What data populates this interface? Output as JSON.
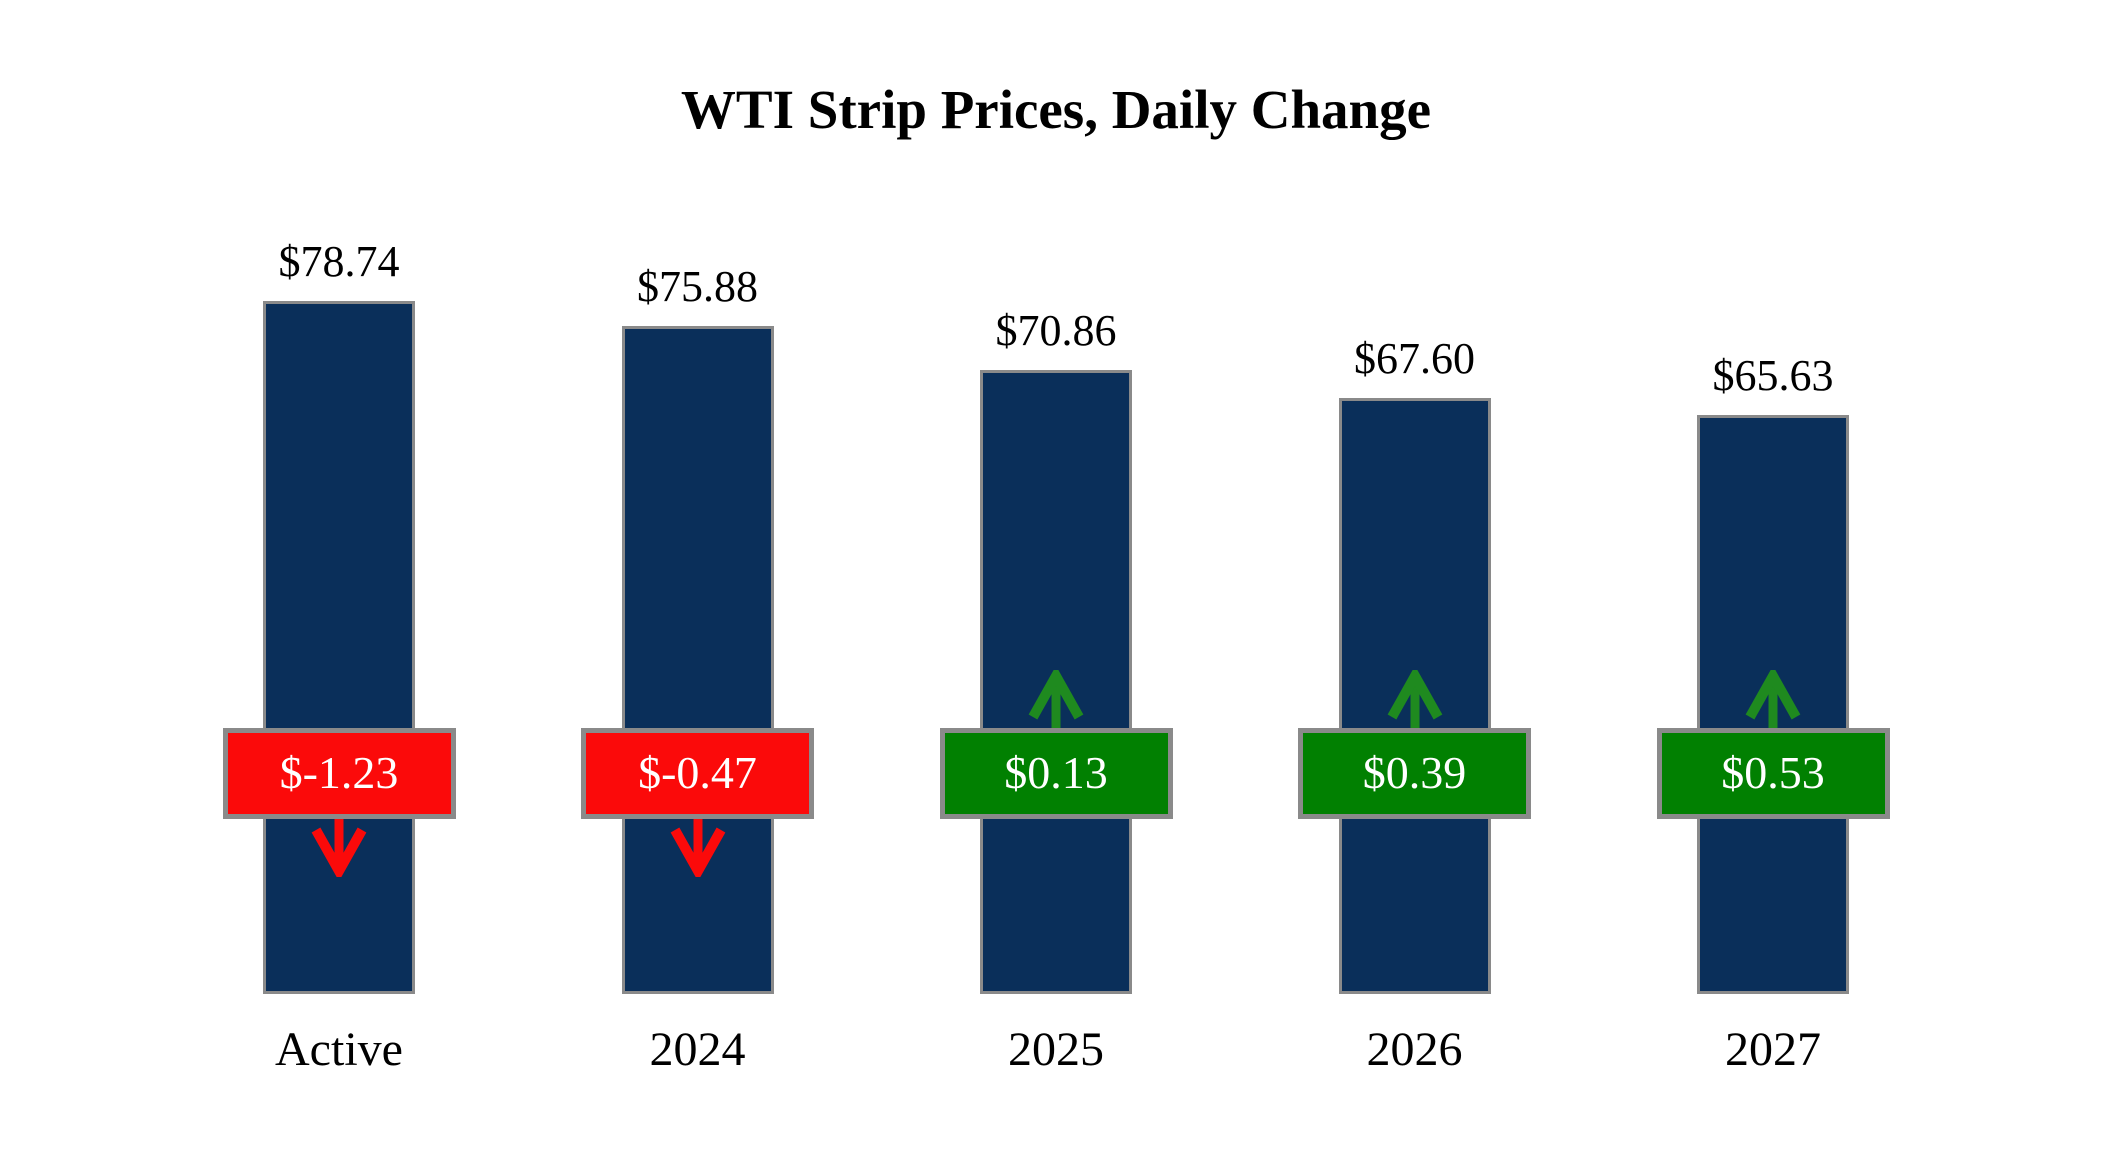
{
  "title": "WTI Strip Prices, Daily Change",
  "colors": {
    "background": "#FFFFFF",
    "bar_navy": "#0A2F5A",
    "border_gray": "#8A8A8A",
    "negative_red": "#FB0A0A",
    "positive_green": "#018001",
    "positive_arrow_green": "#1F8A1F",
    "badge_text_white": "#FFFFFF",
    "label_text_black": "#000000"
  },
  "chart_data": {
    "type": "bar",
    "title": "WTI Strip Prices, Daily Change",
    "categories": [
      "Active",
      "2024",
      "2025",
      "2026",
      "2027"
    ],
    "series": [
      {
        "name": "WTI strip price",
        "values": [
          78.74,
          75.88,
          70.86,
          67.6,
          65.63
        ],
        "labels": [
          "$78.74",
          "$75.88",
          "$70.86",
          "$67.60",
          "$65.63"
        ]
      },
      {
        "name": "Daily change",
        "values": [
          -1.23,
          -0.47,
          0.13,
          0.39,
          0.53
        ],
        "labels": [
          "$-1.23",
          "$-0.47",
          "$0.13",
          "$0.39",
          "$0.53"
        ]
      }
    ],
    "ylim": [
      0,
      80
    ],
    "grid": false,
    "legend": "none",
    "layout_note": "vertical bars; change badge overlaid mid-bar; red badge with down arrow below for negative change, green badge with up arrow above for positive change"
  }
}
